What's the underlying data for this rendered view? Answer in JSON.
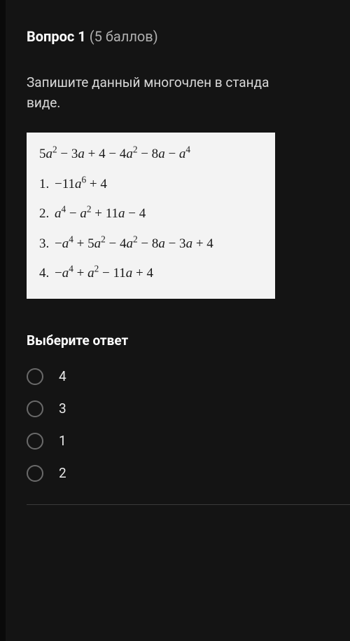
{
  "question": {
    "label": "Вопрос 1",
    "points": "(5 баллов)",
    "prompt_line1": "Запишите данный многочлен в станда",
    "prompt_line2": "виде."
  },
  "math": {
    "expression": "5a² − 3a + 4 − 4a² − 8a − a⁴",
    "options": [
      {
        "num": "1.",
        "expr": "−11a⁶ + 4"
      },
      {
        "num": "2.",
        "expr": "a⁴ − a² + 11a − 4"
      },
      {
        "num": "3.",
        "expr": "−a⁴ + 5a² − 4a² − 8a − 3a + 4"
      },
      {
        "num": "4.",
        "expr": "−a⁴ + a² − 11a + 4"
      }
    ]
  },
  "answer": {
    "label": "Выберите ответ",
    "choices": [
      "4",
      "3",
      "1",
      "2"
    ]
  },
  "colors": {
    "page_bg": "#0a0a0a",
    "card_bg": "#141414",
    "text_primary": "#ffffff",
    "text_secondary": "#d8d8d8",
    "text_muted": "#b0b0b0",
    "math_bg": "#f3f3f3",
    "math_text": "#1a1a1a",
    "radio_border": "#6a6a6a",
    "divider": "#3a3a3a"
  },
  "typography": {
    "heading_size": 20,
    "body_size": 19,
    "math_font": "Times New Roman"
  }
}
